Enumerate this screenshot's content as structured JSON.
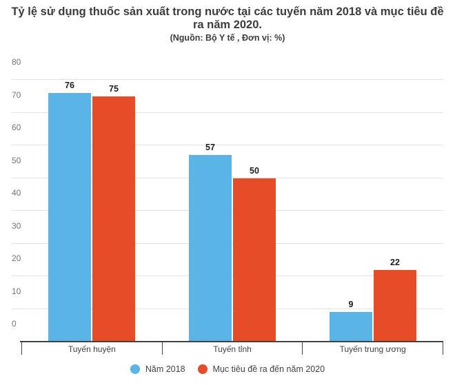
{
  "header": {
    "title": "Tỷ lệ sử dụng thuốc sản xuất trong nước tại các tuyến năm 2018 và mục tiêu đề ra năm 2020.",
    "subtitle": "(Nguồn: Bộ Y tế , Đơn vị: %)"
  },
  "chart_data": {
    "type": "bar",
    "title": "Tỷ lệ sử dụng thuốc sản xuất trong nước tại các tuyến năm 2018 và mục tiêu đề ra năm 2020.",
    "subtitle": "(Nguồn: Bộ Y tế , Đơn vị: %)",
    "categories": [
      "Tuyến huyện",
      "Tuyến tỉnh",
      "Tuyến trung ương"
    ],
    "series": [
      {
        "name": "Năm 2018",
        "color": "#5ab4e5",
        "values": [
          76,
          57,
          9
        ]
      },
      {
        "name": "Mục tiêu đề ra đến năm 2020",
        "color": "#e64c28",
        "values": [
          75,
          50,
          22
        ]
      }
    ],
    "xlabel": "",
    "ylabel": "",
    "ylim": [
      0,
      80
    ],
    "ytick_step": 10,
    "grid": true,
    "value_labels": true,
    "legend_position": "bottom",
    "colors": {
      "axis": "#424242",
      "gridline": "#e3e3e3",
      "tick_label": "#757575",
      "category_label": "#424242",
      "value_label": "#1c1c1c",
      "title": "#3c3c3c"
    }
  }
}
